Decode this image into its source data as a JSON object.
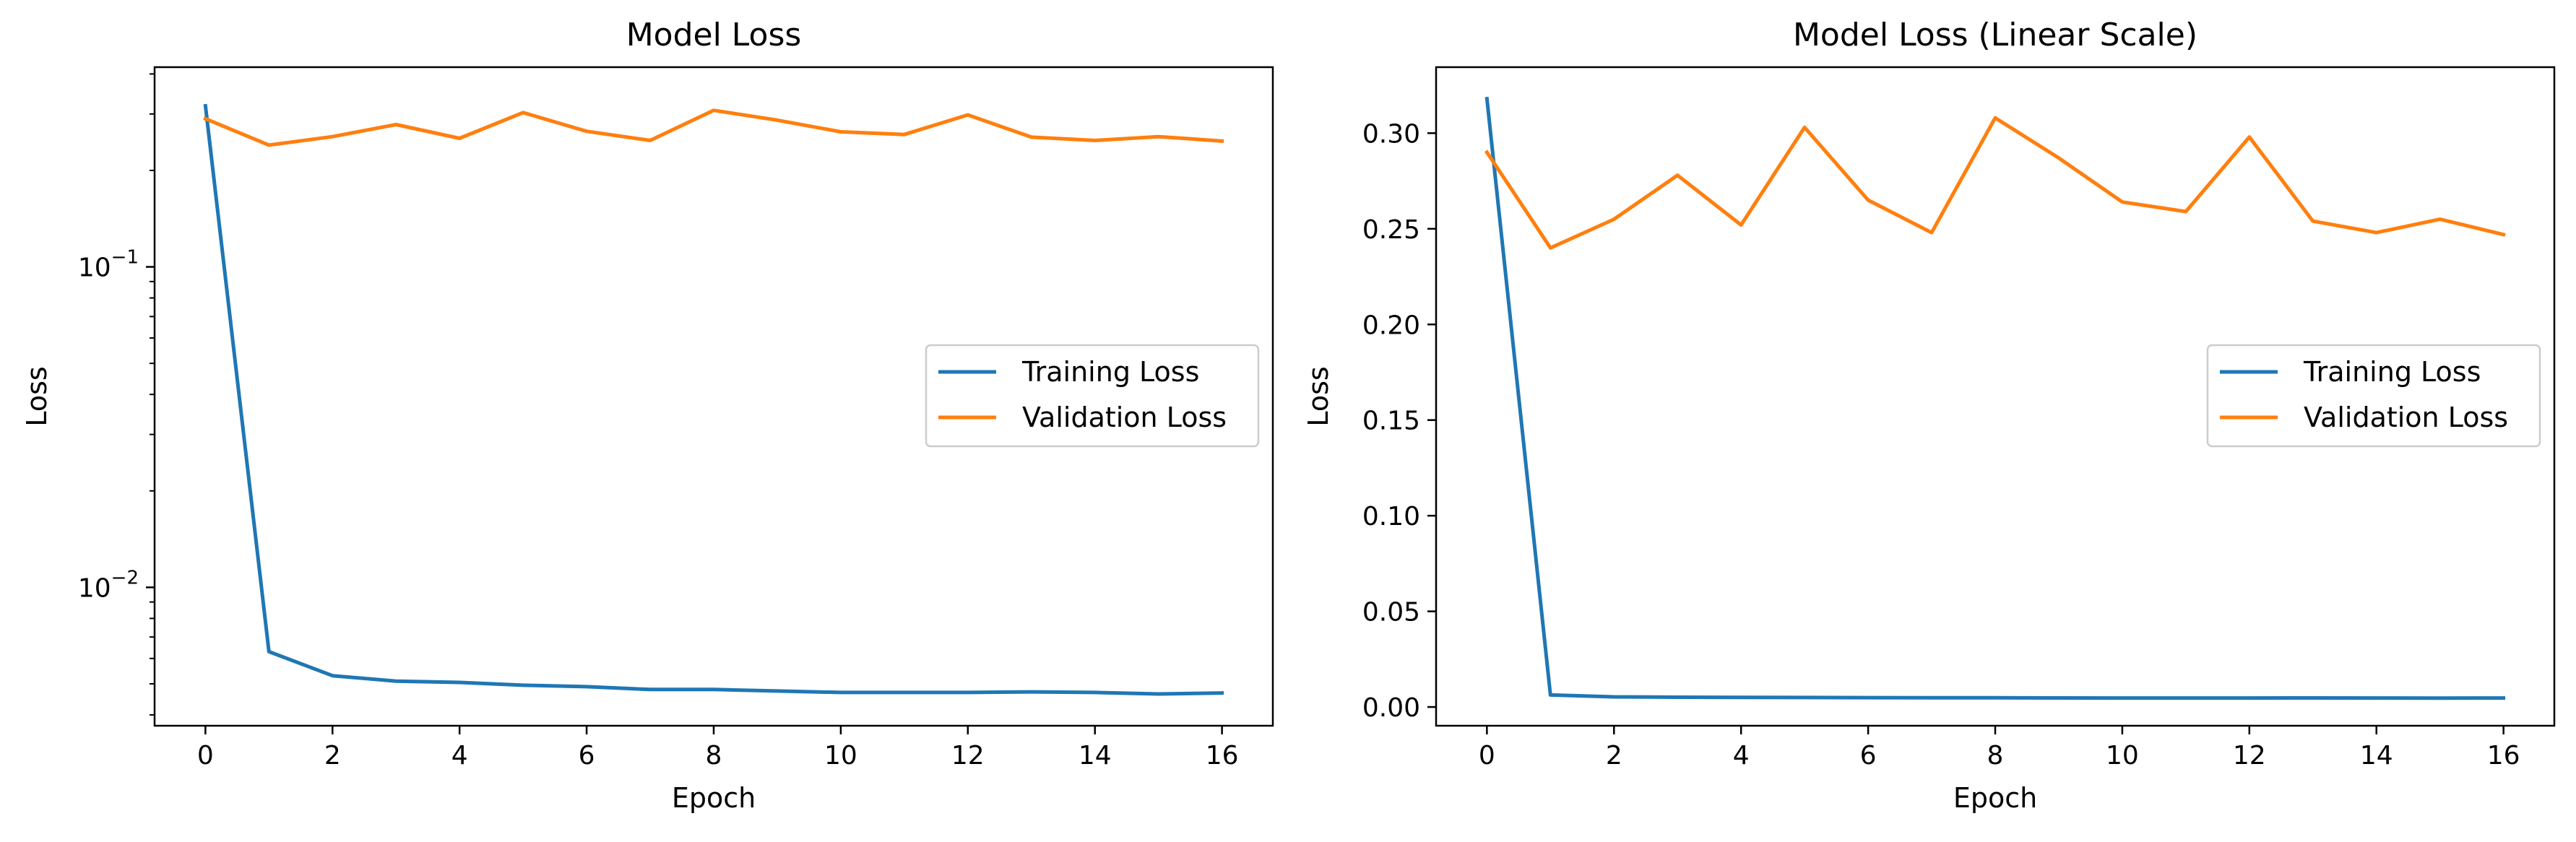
{
  "chart_data": [
    {
      "type": "line",
      "title": "Model Loss",
      "xlabel": "Epoch",
      "ylabel": "Loss",
      "yscale": "log",
      "xlim": [
        -0.8,
        16.8
      ],
      "ylim": [
        0.0037,
        0.42
      ],
      "xticks": [
        "0",
        "2",
        "4",
        "6",
        "8",
        "10",
        "12",
        "14",
        "16"
      ],
      "yticks": [
        {
          "base": "10",
          "exp": "−1",
          "value": 0.1
        },
        {
          "base": "10",
          "exp": "−2",
          "value": 0.01
        }
      ],
      "legend_location": "center-right",
      "grid": false,
      "x": [
        0,
        1,
        2,
        3,
        4,
        5,
        6,
        7,
        8,
        9,
        10,
        11,
        12,
        13,
        14,
        15,
        16
      ],
      "series": [
        {
          "name": "Training Loss",
          "color": "#1f77b4",
          "values": [
            0.318,
            0.0063,
            0.0053,
            0.0051,
            0.00505,
            0.00495,
            0.0049,
            0.0048,
            0.0048,
            0.00475,
            0.0047,
            0.0047,
            0.0047,
            0.00472,
            0.0047,
            0.00465,
            0.00468
          ]
        },
        {
          "name": "Validation Loss",
          "color": "#ff7f0e",
          "values": [
            0.29,
            0.24,
            0.255,
            0.278,
            0.252,
            0.303,
            0.265,
            0.248,
            0.308,
            0.287,
            0.264,
            0.259,
            0.298,
            0.254,
            0.248,
            0.255,
            0.247
          ]
        }
      ]
    },
    {
      "type": "line",
      "title": "Model Loss (Linear Scale)",
      "xlabel": "Epoch",
      "ylabel": "Loss",
      "yscale": "linear",
      "xlim": [
        -0.8,
        16.8
      ],
      "ylim": [
        -0.0098,
        0.3345
      ],
      "xticks": [
        "0",
        "2",
        "4",
        "6",
        "8",
        "10",
        "12",
        "14",
        "16"
      ],
      "yticks": [
        "0.00",
        "0.05",
        "0.10",
        "0.15",
        "0.20",
        "0.25",
        "0.30"
      ],
      "legend_location": "center-right",
      "grid": false,
      "x": [
        0,
        1,
        2,
        3,
        4,
        5,
        6,
        7,
        8,
        9,
        10,
        11,
        12,
        13,
        14,
        15,
        16
      ],
      "series": [
        {
          "name": "Training Loss",
          "color": "#1f77b4",
          "values": [
            0.318,
            0.0063,
            0.0053,
            0.0051,
            0.00505,
            0.00495,
            0.0049,
            0.0048,
            0.0048,
            0.00475,
            0.0047,
            0.0047,
            0.0047,
            0.00472,
            0.0047,
            0.00465,
            0.00468
          ]
        },
        {
          "name": "Validation Loss",
          "color": "#ff7f0e",
          "values": [
            0.29,
            0.24,
            0.255,
            0.278,
            0.252,
            0.303,
            0.265,
            0.248,
            0.308,
            0.287,
            0.264,
            0.259,
            0.298,
            0.254,
            0.248,
            0.255,
            0.247
          ]
        }
      ]
    }
  ]
}
